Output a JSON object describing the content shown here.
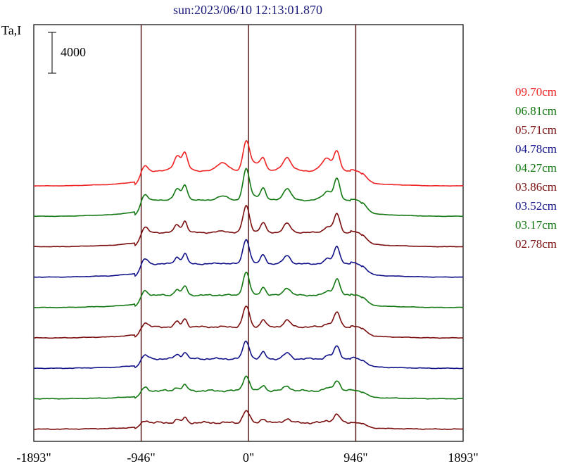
{
  "chart_data": {
    "type": "line",
    "title": "sun:2023/06/10 12:13:01.870",
    "ylabel": "Ta,I",
    "scale_bar_label": "4000",
    "scale_bar_value": 4000,
    "xlabel": "",
    "xlim": [
      -1893,
      1893
    ],
    "x_ticks": [
      {
        "value": -1893,
        "label": "-1893\""
      },
      {
        "value": -946,
        "label": "-946\""
      },
      {
        "value": 0,
        "label": "0\""
      },
      {
        "value": 946,
        "label": "946\""
      },
      {
        "value": 1893,
        "label": "1893\""
      }
    ],
    "vertical_lines": [
      -946,
      0,
      946
    ],
    "legend_placement": "right",
    "series": [
      {
        "name": "09.70cm",
        "color": "#ee2222",
        "amp": 0.96,
        "bump": 0.62,
        "noise": 0.3
      },
      {
        "name": "06.81cm",
        "color": "#117711",
        "amp": 1.04,
        "bump": 0.28,
        "noise": 0.34
      },
      {
        "name": "05.71cm",
        "color": "#7a0d0d",
        "amp": 0.92,
        "bump": 0.1,
        "noise": 0.4
      },
      {
        "name": "04.78cm",
        "color": "#111188",
        "amp": 0.86,
        "bump": 0.06,
        "noise": 0.45
      },
      {
        "name": "04.27cm",
        "color": "#117711",
        "amp": 0.8,
        "bump": 0.02,
        "noise": 0.5
      },
      {
        "name": "03.86cm",
        "color": "#7a0d0d",
        "amp": 0.72,
        "bump": 0.0,
        "noise": 0.55
      },
      {
        "name": "03.52cm",
        "color": "#111188",
        "amp": 0.62,
        "bump": 0.0,
        "noise": 0.6
      },
      {
        "name": "03.17cm",
        "color": "#117711",
        "amp": 0.52,
        "bump": 0.0,
        "noise": 0.65
      },
      {
        "name": "02.78cm",
        "color": "#7a0d0d",
        "amp": 0.42,
        "bump": 0.0,
        "noise": 0.7
      }
    ],
    "colors": {
      "frame": "#000000",
      "vlines": "#5a1a1a",
      "title": "#1a1a7a"
    }
  }
}
